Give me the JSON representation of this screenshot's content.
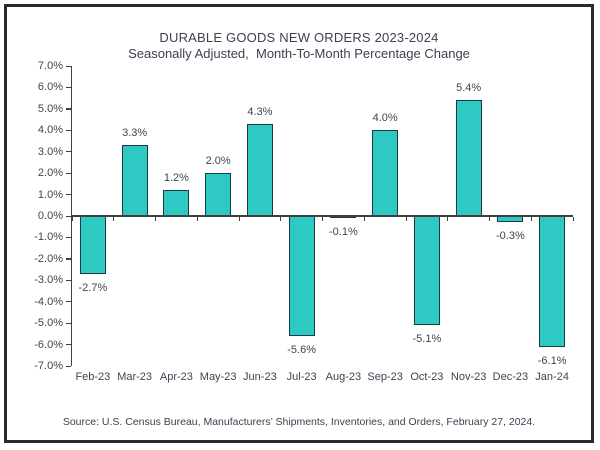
{
  "chart": {
    "title": "DURABLE GOODS NEW ORDERS 2023-2024",
    "subtitle": "Seasonally Adjusted,  Month-To-Month Percentage Change",
    "source": "Source: U.S. Census Bureau, Manufacturers’ Shipments, Inventories, and Orders, February 27, 2024."
  },
  "chart_data": {
    "type": "bar",
    "categories": [
      "Feb-23",
      "Mar-23",
      "Apr-23",
      "May-23",
      "Jun-23",
      "Jul-23",
      "Aug-23",
      "Sep-23",
      "Oct-23",
      "Nov-23",
      "Dec-23",
      "Jan-24"
    ],
    "values": [
      -2.7,
      3.3,
      1.2,
      2.0,
      4.3,
      -5.6,
      -0.1,
      4.0,
      -5.1,
      5.4,
      -0.3,
      -6.1
    ],
    "data_labels": [
      "-2.7%",
      "3.3%",
      "1.2%",
      "2.0%",
      "4.3%",
      "-5.6%",
      "-0.1%",
      "4.0%",
      "-5.1%",
      "5.4%",
      "-0.3%",
      "-6.1%"
    ],
    "title": "DURABLE GOODS NEW ORDERS 2023-2024",
    "subtitle": "Seasonally Adjusted,  Month-To-Month Percentage Change",
    "xlabel": "",
    "ylabel": "",
    "ylim": [
      -7,
      7
    ],
    "y_step": 1,
    "y_ticks": [
      "7.0%",
      "6.0%",
      "5.0%",
      "4.0%",
      "3.0%",
      "2.0%",
      "1.0%",
      "0.0%",
      "-1.0%",
      "-2.0%",
      "-3.0%",
      "-4.0%",
      "-5.0%",
      "-6.0%",
      "-7.0%"
    ],
    "grid": false,
    "legend_position": "none",
    "bar_color": "#2fc9c3",
    "bar_border_color": "#1c3b4a",
    "text_color": "#3f4452",
    "axis_color": "#404040"
  }
}
